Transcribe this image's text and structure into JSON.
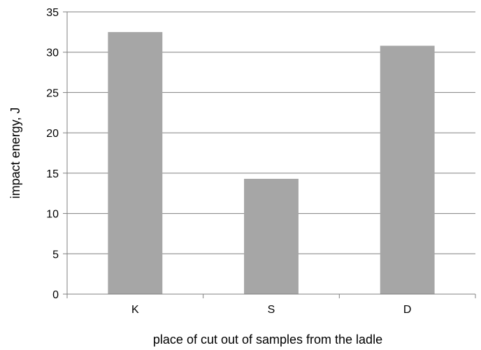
{
  "chart_data": {
    "type": "bar",
    "categories": [
      "K",
      "S",
      "D"
    ],
    "values": [
      32.5,
      14.3,
      30.8
    ],
    "xlabel": "place of cut out of samples from the ladle",
    "ylabel": "impact energy, J",
    "ylim": [
      0,
      35
    ],
    "yticks": [
      "0",
      "5",
      "10",
      "15",
      "20",
      "25",
      "30",
      "35"
    ],
    "grid": true,
    "bar_color": "#a6a6a6",
    "grid_color": "#808080",
    "axis_color": "#808080"
  }
}
